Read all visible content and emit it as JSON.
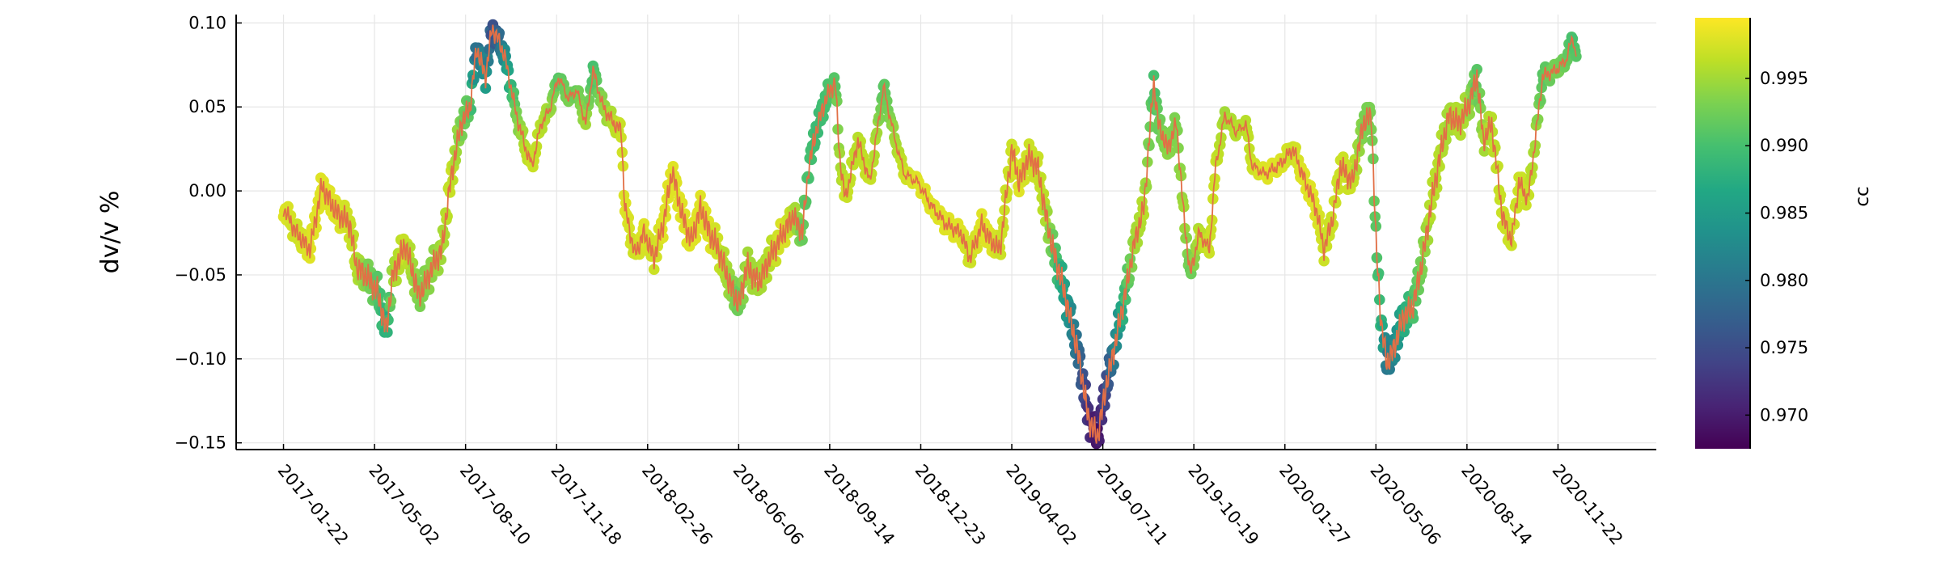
{
  "chart_data": {
    "type": "scatter",
    "title": "",
    "ylabel": "dv/v %",
    "xlabel": "",
    "x_axis": {
      "scale": "date",
      "range": [
        "2016-12-01",
        "2021-03-10"
      ],
      "ticks": [
        "2017-01-22",
        "2017-05-02",
        "2017-08-10",
        "2017-11-18",
        "2018-02-26",
        "2018-06-06",
        "2018-09-14",
        "2018-12-23",
        "2019-04-02",
        "2019-07-11",
        "2019-10-19",
        "2020-01-27",
        "2020-05-06",
        "2020-08-14",
        "2020-11-22"
      ],
      "tick_label_rotation_deg": 50
    },
    "y_axis": {
      "range": [
        -0.154,
        0.105
      ],
      "ticks": [
        -0.15,
        -0.1,
        -0.05,
        0.0,
        0.05,
        0.1
      ],
      "tick_labels": [
        "−0.15",
        "−0.10",
        "−0.05",
        "0.00",
        "0.05",
        "0.10"
      ]
    },
    "grid": true,
    "legend": "none",
    "line_color": "#e26f46",
    "colormap": "viridis",
    "colorbar": {
      "label": "cc",
      "range": [
        0.9675,
        0.9995
      ],
      "ticks": [
        0.97,
        0.975,
        0.98,
        0.985,
        0.99,
        0.995
      ],
      "tick_labels": [
        "0.970",
        "0.975",
        "0.980",
        "0.985",
        "0.990",
        "0.995"
      ]
    },
    "anchors": [
      [
        "2017-01-22",
        -0.01,
        0.998
      ],
      [
        "2017-02-05",
        -0.025,
        0.997
      ],
      [
        "2017-02-20",
        -0.035,
        0.998
      ],
      [
        "2017-03-05",
        0.003,
        0.998
      ],
      [
        "2017-03-20",
        -0.012,
        0.998
      ],
      [
        "2017-04-05",
        -0.02,
        0.997
      ],
      [
        "2017-04-12",
        -0.045,
        0.996
      ],
      [
        "2017-04-25",
        -0.052,
        0.993
      ],
      [
        "2017-05-05",
        -0.06,
        0.991
      ],
      [
        "2017-05-15",
        -0.083,
        0.987
      ],
      [
        "2017-05-22",
        -0.05,
        0.995
      ],
      [
        "2017-06-05",
        -0.032,
        0.997
      ],
      [
        "2017-06-20",
        -0.063,
        0.993
      ],
      [
        "2017-07-05",
        -0.045,
        0.994
      ],
      [
        "2017-07-15",
        -0.035,
        0.995
      ],
      [
        "2017-07-25",
        0.008,
        0.997
      ],
      [
        "2017-08-05",
        0.04,
        0.993
      ],
      [
        "2017-08-15",
        0.05,
        0.991
      ],
      [
        "2017-08-22",
        0.085,
        0.978
      ],
      [
        "2017-09-01",
        0.068,
        0.985
      ],
      [
        "2017-09-08",
        0.097,
        0.975
      ],
      [
        "2017-09-15",
        0.09,
        0.978
      ],
      [
        "2017-09-22",
        0.08,
        0.983
      ],
      [
        "2017-10-05",
        0.045,
        0.993
      ],
      [
        "2017-10-15",
        0.025,
        0.996
      ],
      [
        "2017-10-22",
        0.015,
        0.997
      ],
      [
        "2017-11-01",
        0.04,
        0.996
      ],
      [
        "2017-11-10",
        0.048,
        0.995
      ],
      [
        "2017-11-20",
        0.068,
        0.991
      ],
      [
        "2017-12-01",
        0.055,
        0.993
      ],
      [
        "2017-12-10",
        0.06,
        0.992
      ],
      [
        "2017-12-20",
        0.04,
        0.995
      ],
      [
        "2017-12-28",
        0.072,
        0.99
      ],
      [
        "2018-01-08",
        0.05,
        0.994
      ],
      [
        "2018-01-20",
        0.04,
        0.996
      ],
      [
        "2018-01-28",
        0.036,
        0.997
      ],
      [
        "2018-02-01",
        -0.01,
        0.998
      ],
      [
        "2018-02-12",
        -0.038,
        0.997
      ],
      [
        "2018-02-22",
        -0.025,
        0.998
      ],
      [
        "2018-03-05",
        -0.04,
        0.997
      ],
      [
        "2018-03-15",
        -0.02,
        0.998
      ],
      [
        "2018-03-25",
        0.012,
        0.998
      ],
      [
        "2018-04-05",
        -0.015,
        0.998
      ],
      [
        "2018-04-15",
        -0.03,
        0.998
      ],
      [
        "2018-04-25",
        -0.01,
        0.998
      ],
      [
        "2018-05-05",
        -0.025,
        0.998
      ],
      [
        "2018-05-15",
        -0.035,
        0.997
      ],
      [
        "2018-05-25",
        -0.052,
        0.995
      ],
      [
        "2018-06-06",
        -0.068,
        0.992
      ],
      [
        "2018-06-15",
        -0.045,
        0.995
      ],
      [
        "2018-06-28",
        -0.055,
        0.995
      ],
      [
        "2018-07-10",
        -0.04,
        0.996
      ],
      [
        "2018-07-25",
        -0.025,
        0.998
      ],
      [
        "2018-08-05",
        -0.015,
        0.996
      ],
      [
        "2018-08-15",
        -0.025,
        0.992
      ],
      [
        "2018-08-22",
        0.015,
        0.99
      ],
      [
        "2018-09-01",
        0.04,
        0.989
      ],
      [
        "2018-09-10",
        0.055,
        0.99
      ],
      [
        "2018-09-20",
        0.065,
        0.991
      ],
      [
        "2018-09-25",
        0.02,
        0.995
      ],
      [
        "2018-10-01",
        -0.005,
        0.997
      ],
      [
        "2018-10-15",
        0.03,
        0.996
      ],
      [
        "2018-10-28",
        0.005,
        0.997
      ],
      [
        "2018-11-05",
        0.035,
        0.995
      ],
      [
        "2018-11-12",
        0.062,
        0.991
      ],
      [
        "2018-11-25",
        0.03,
        0.995
      ],
      [
        "2018-12-05",
        0.01,
        0.997
      ],
      [
        "2018-12-20",
        0.005,
        0.998
      ],
      [
        "2019-01-05",
        -0.01,
        0.998
      ],
      [
        "2019-01-20",
        -0.02,
        0.998
      ],
      [
        "2019-02-05",
        -0.025,
        0.998
      ],
      [
        "2019-02-15",
        -0.04,
        0.997
      ],
      [
        "2019-02-28",
        -0.02,
        0.998
      ],
      [
        "2019-03-10",
        -0.03,
        0.998
      ],
      [
        "2019-03-20",
        -0.035,
        0.997
      ],
      [
        "2019-04-02",
        0.025,
        0.997
      ],
      [
        "2019-04-10",
        0.005,
        0.998
      ],
      [
        "2019-04-20",
        0.02,
        0.997
      ],
      [
        "2019-04-30",
        0.015,
        0.997
      ],
      [
        "2019-05-08",
        -0.01,
        0.996
      ],
      [
        "2019-05-15",
        -0.03,
        0.993
      ],
      [
        "2019-05-25",
        -0.05,
        0.988
      ],
      [
        "2019-06-05",
        -0.075,
        0.983
      ],
      [
        "2019-06-15",
        -0.1,
        0.978
      ],
      [
        "2019-06-25",
        -0.135,
        0.972
      ],
      [
        "2019-07-05",
        -0.147,
        0.969
      ],
      [
        "2019-07-15",
        -0.115,
        0.975
      ],
      [
        "2019-07-25",
        -0.09,
        0.982
      ],
      [
        "2019-08-05",
        -0.06,
        0.99
      ],
      [
        "2019-08-15",
        -0.03,
        0.995
      ],
      [
        "2019-08-25",
        -0.01,
        0.996
      ],
      [
        "2019-09-05",
        0.065,
        0.99
      ],
      [
        "2019-09-10",
        0.04,
        0.992
      ],
      [
        "2019-09-20",
        0.025,
        0.994
      ],
      [
        "2019-09-30",
        0.04,
        0.993
      ],
      [
        "2019-10-08",
        -0.015,
        0.995
      ],
      [
        "2019-10-15",
        -0.05,
        0.992
      ],
      [
        "2019-10-25",
        -0.025,
        0.996
      ],
      [
        "2019-11-05",
        -0.035,
        0.997
      ],
      [
        "2019-11-12",
        0.015,
        0.997
      ],
      [
        "2019-11-22",
        0.045,
        0.995
      ],
      [
        "2019-12-05",
        0.035,
        0.996
      ],
      [
        "2019-12-15",
        0.04,
        0.996
      ],
      [
        "2019-12-22",
        0.015,
        0.997
      ],
      [
        "2020-01-05",
        0.01,
        0.998
      ],
      [
        "2020-01-20",
        0.015,
        0.998
      ],
      [
        "2020-02-05",
        0.025,
        0.997
      ],
      [
        "2020-02-15",
        0.01,
        0.998
      ],
      [
        "2020-03-01",
        -0.01,
        0.998
      ],
      [
        "2020-03-10",
        -0.035,
        0.997
      ],
      [
        "2020-03-20",
        -0.015,
        0.997
      ],
      [
        "2020-03-28",
        0.015,
        0.997
      ],
      [
        "2020-04-10",
        0.005,
        0.997
      ],
      [
        "2020-04-22",
        0.04,
        0.993
      ],
      [
        "2020-05-01",
        0.045,
        0.993
      ],
      [
        "2020-05-06",
        -0.03,
        0.991
      ],
      [
        "2020-05-12",
        -0.08,
        0.988
      ],
      [
        "2020-05-18",
        -0.103,
        0.98
      ],
      [
        "2020-05-25",
        -0.095,
        0.982
      ],
      [
        "2020-06-05",
        -0.075,
        0.987
      ],
      [
        "2020-06-15",
        -0.07,
        0.99
      ],
      [
        "2020-06-25",
        -0.045,
        0.993
      ],
      [
        "2020-07-05",
        -0.01,
        0.996
      ],
      [
        "2020-07-15",
        0.02,
        0.996
      ],
      [
        "2020-07-25",
        0.045,
        0.995
      ],
      [
        "2020-08-05",
        0.04,
        0.996
      ],
      [
        "2020-08-15",
        0.05,
        0.995
      ],
      [
        "2020-08-25",
        0.068,
        0.991
      ],
      [
        "2020-09-01",
        0.03,
        0.995
      ],
      [
        "2020-09-10",
        0.04,
        0.996
      ],
      [
        "2020-09-22",
        -0.015,
        0.997
      ],
      [
        "2020-10-02",
        -0.03,
        0.997
      ],
      [
        "2020-10-10",
        0.005,
        0.997
      ],
      [
        "2020-10-20",
        -0.005,
        0.997
      ],
      [
        "2020-10-28",
        0.03,
        0.995
      ],
      [
        "2020-11-05",
        0.068,
        0.991
      ],
      [
        "2020-11-20",
        0.072,
        0.993
      ],
      [
        "2020-12-01",
        0.078,
        0.992
      ],
      [
        "2020-12-08",
        0.092,
        0.99
      ],
      [
        "2020-12-12",
        0.08,
        0.991
      ]
    ]
  }
}
